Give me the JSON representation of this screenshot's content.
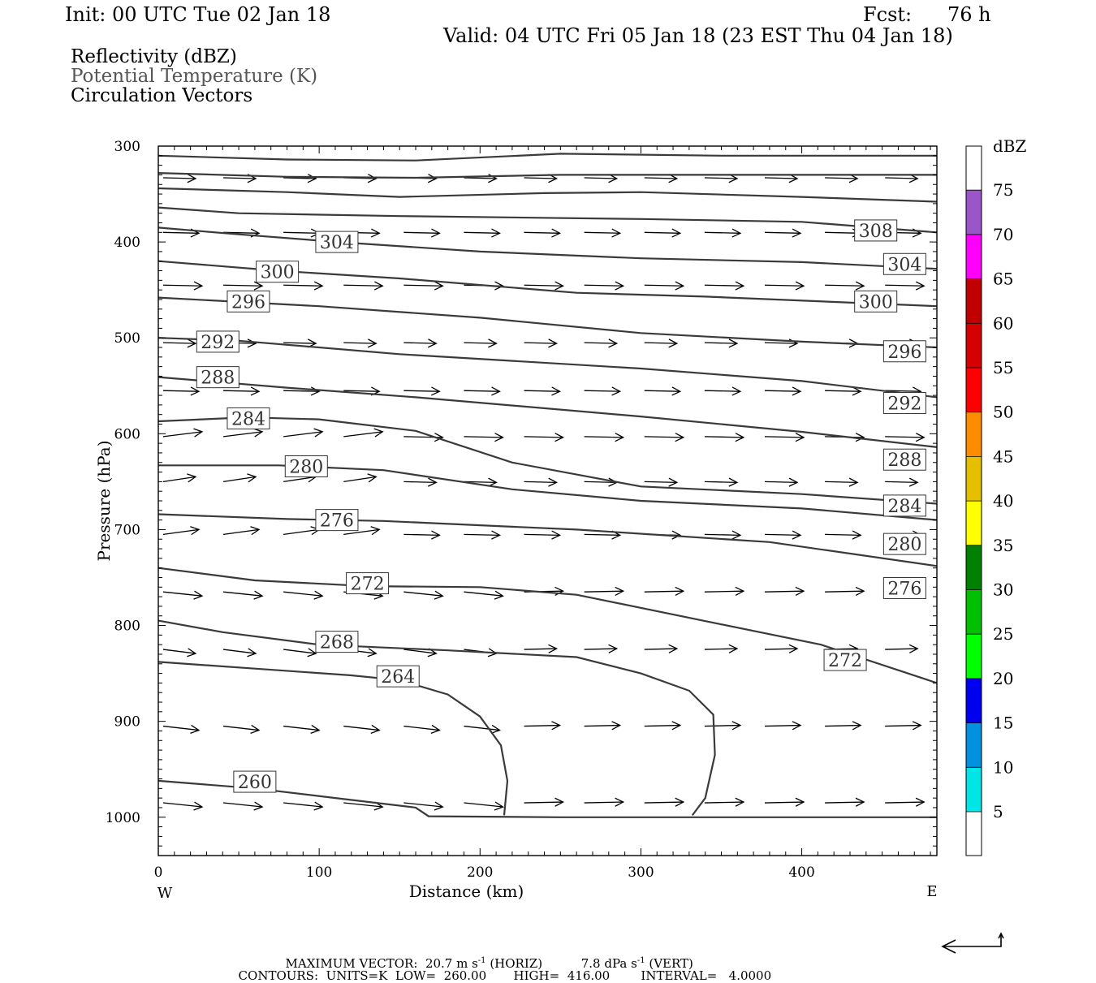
{
  "header": {
    "init": "Init: 00 UTC Tue 02 Jan 18",
    "fcst_label": "Fcst:",
    "fcst_value": "76 h",
    "valid": "Valid: 04 UTC Fri 05 Jan 18 (23 EST Thu 04 Jan 18)"
  },
  "fields": {
    "reflectivity": "Reflectivity (dBZ)",
    "potential_temperature": "Potential Temperature (K)",
    "circulation": "Circulation Vectors"
  },
  "footer": {
    "max_vector_label": "MAXIMUM VECTOR:",
    "horiz_value": "20.7 m s",
    "horiz_unit": "(HORIZ)",
    "vert_value": "7.8 dPa s",
    "vert_unit": "(VERT)",
    "exponent": "-1",
    "contours_label": "CONTOURS:",
    "units": "UNITS=K",
    "low": "LOW=",
    "low_value": "260.00",
    "high": "HIGH=",
    "high_value": "416.00",
    "interval": "INTERVAL=",
    "interval_value": "4.0000"
  },
  "colors": {
    "contour": "#3a3a3a",
    "reflectivity_scale": [
      "#00e5e5",
      "#0090e0",
      "#0000f0",
      "#00ff00",
      "#00c000",
      "#008000",
      "#ffff00",
      "#e5be00",
      "#ff8c00",
      "#ff0000",
      "#d60000",
      "#c00000",
      "#ff00ff",
      "#9955c9"
    ]
  },
  "chart_data": {
    "type": "contour",
    "xlabel": "Distance (km)",
    "ylabel": "Pressure (hPa)",
    "x_ticks": [
      "0",
      "100",
      "200",
      "300",
      "400"
    ],
    "y_ticks": [
      "300",
      "400",
      "500",
      "600",
      "700",
      "800",
      "900",
      "1000"
    ],
    "x_left_label": "W",
    "x_right_label": "E",
    "xlim": [
      0,
      484
    ],
    "ylim": [
      1040,
      300
    ],
    "colorbar": {
      "label": "dBZ",
      "ticks": [
        "5",
        "10",
        "15",
        "20",
        "25",
        "30",
        "35",
        "40",
        "45",
        "50",
        "55",
        "60",
        "65",
        "70",
        "75"
      ]
    },
    "contours": [
      {
        "level": "260",
        "points": [
          [
            0,
            962
          ],
          [
            60,
            970
          ],
          [
            110,
            980
          ],
          [
            160,
            990
          ],
          [
            168,
            999
          ],
          [
            250,
            1000
          ],
          [
            484,
            1000
          ]
        ],
        "label_at": [
          60,
          963
        ]
      },
      {
        "level": "264",
        "points": [
          [
            0,
            838
          ],
          [
            60,
            845
          ],
          [
            120,
            852
          ],
          [
            150,
            857
          ],
          [
            180,
            872
          ],
          [
            200,
            895
          ],
          [
            213,
            925
          ],
          [
            217,
            962
          ],
          [
            215,
            998
          ]
        ],
        "label_at": [
          149,
          853
        ]
      },
      {
        "level": "268",
        "points": [
          [
            0,
            795
          ],
          [
            40,
            807
          ],
          [
            100,
            820
          ],
          [
            180,
            826
          ],
          [
            260,
            833
          ],
          [
            300,
            850
          ],
          [
            330,
            868
          ],
          [
            345,
            893
          ],
          [
            346,
            935
          ],
          [
            340,
            980
          ],
          [
            332,
            998
          ]
        ],
        "label_at": [
          111,
          817
        ]
      },
      {
        "level": "272",
        "points": [
          [
            0,
            740
          ],
          [
            60,
            753
          ],
          [
            130,
            759
          ],
          [
            200,
            760
          ],
          [
            260,
            768
          ],
          [
            330,
            792
          ],
          [
            412,
            820
          ],
          [
            484,
            860
          ]
        ],
        "label_at": [
          130,
          756
        ]
      },
      {
        "level": "276",
        "points": [
          [
            0,
            684
          ],
          [
            80,
            689
          ],
          [
            140,
            691
          ],
          [
            260,
            700
          ],
          [
            380,
            713
          ],
          [
            484,
            738
          ]
        ],
        "label_at": [
          111,
          690
        ]
      },
      {
        "level": "280",
        "points": [
          [
            0,
            633
          ],
          [
            75,
            633
          ],
          [
            140,
            638
          ],
          [
            220,
            658
          ],
          [
            300,
            670
          ],
          [
            400,
            678
          ],
          [
            484,
            690
          ]
        ],
        "label_at": [
          92,
          634
        ]
      },
      {
        "level": "284",
        "points": [
          [
            0,
            587
          ],
          [
            55,
            583
          ],
          [
            100,
            585
          ],
          [
            160,
            597
          ],
          [
            220,
            630
          ],
          [
            300,
            655
          ],
          [
            400,
            663
          ],
          [
            484,
            673
          ]
        ],
        "label_at": [
          56,
          584
        ]
      },
      {
        "level": "288",
        "points": [
          [
            0,
            541
          ],
          [
            80,
            552
          ],
          [
            160,
            562
          ],
          [
            300,
            582
          ],
          [
            400,
            598
          ],
          [
            484,
            614
          ]
        ],
        "label_at": [
          37,
          541
        ]
      },
      {
        "level": "292",
        "points": [
          [
            0,
            500
          ],
          [
            50,
            503
          ],
          [
            150,
            517
          ],
          [
            300,
            532
          ],
          [
            400,
            545
          ],
          [
            484,
            562
          ]
        ],
        "label_at": [
          37,
          504
        ]
      },
      {
        "level": "296",
        "points": [
          [
            0,
            458
          ],
          [
            100,
            467
          ],
          [
            200,
            479
          ],
          [
            300,
            495
          ],
          [
            400,
            504
          ],
          [
            484,
            510
          ]
        ],
        "label_at": [
          56,
          462
        ]
      },
      {
        "level": "300",
        "points": [
          [
            0,
            420
          ],
          [
            74,
            430
          ],
          [
            150,
            438
          ],
          [
            260,
            453
          ],
          [
            340,
            457
          ],
          [
            484,
            467
          ]
        ],
        "label_at": [
          74,
          431
        ]
      },
      {
        "level": "304",
        "points": [
          [
            0,
            385
          ],
          [
            50,
            392
          ],
          [
            111,
            400
          ],
          [
            200,
            410
          ],
          [
            300,
            417
          ],
          [
            400,
            421
          ],
          [
            484,
            428
          ]
        ],
        "label_at": [
          111,
          400
        ]
      },
      {
        "level": "308",
        "points": [
          [
            0,
            364
          ],
          [
            50,
            370
          ],
          [
            150,
            373
          ],
          [
            300,
            376
          ],
          [
            400,
            379
          ],
          [
            484,
            390
          ]
        ],
        "label_at": [
          446,
          388
        ]
      },
      {
        "level": "",
        "points": [
          [
            0,
            344
          ],
          [
            80,
            348
          ],
          [
            150,
            353
          ],
          [
            240,
            349
          ],
          [
            300,
            348
          ],
          [
            400,
            353
          ],
          [
            484,
            358
          ]
        ]
      },
      {
        "level": "",
        "points": [
          [
            0,
            328
          ],
          [
            80,
            332
          ],
          [
            160,
            333
          ],
          [
            250,
            330
          ],
          [
            350,
            330
          ],
          [
            484,
            330
          ]
        ]
      },
      {
        "level": "",
        "points": [
          [
            0,
            310
          ],
          [
            80,
            314
          ],
          [
            160,
            315
          ],
          [
            250,
            308
          ],
          [
            350,
            310
          ],
          [
            484,
            310
          ]
        ]
      }
    ],
    "edge_labels": [
      {
        "text": "304",
        "at": [
          464,
          423
        ]
      },
      {
        "text": "300",
        "at": [
          446,
          462
        ]
      },
      {
        "text": "296",
        "at": [
          464,
          514
        ]
      },
      {
        "text": "292",
        "at": [
          464,
          568
        ]
      },
      {
        "text": "288",
        "at": [
          464,
          627
        ]
      },
      {
        "text": "284",
        "at": [
          464,
          675
        ]
      },
      {
        "text": "280",
        "at": [
          464,
          715
        ]
      },
      {
        "text": "276",
        "at": [
          464,
          761
        ]
      },
      {
        "text": "272",
        "at": [
          427,
          836
        ]
      }
    ]
  }
}
